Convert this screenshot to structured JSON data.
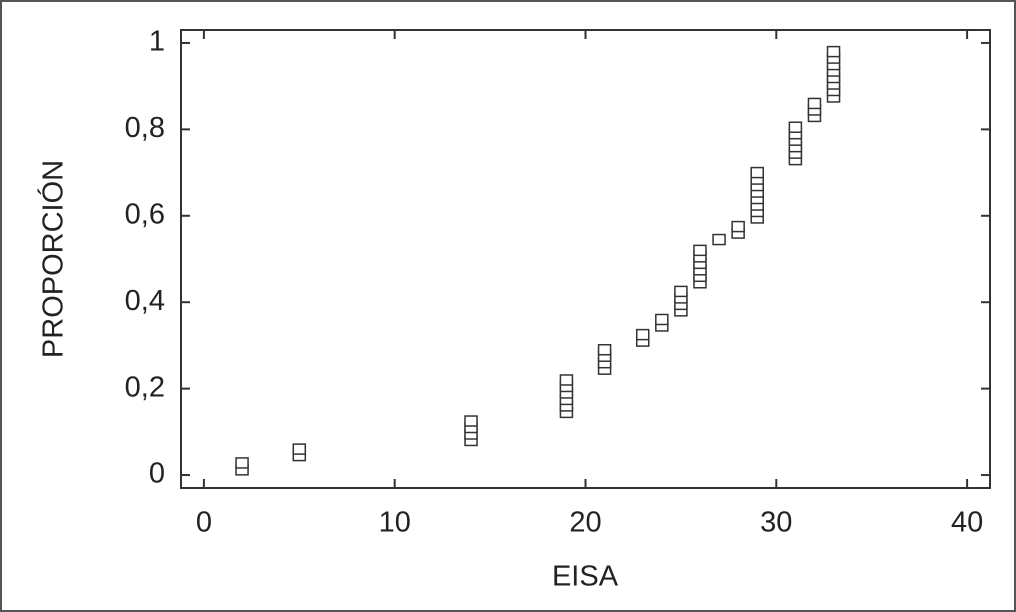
{
  "chart_data": {
    "type": "scatter",
    "x_label": "EISA",
    "y_label": "PROPORCIÓN",
    "x": [
      2,
      2,
      5,
      5,
      14,
      14,
      14,
      14,
      19,
      19,
      19,
      19,
      19,
      19,
      21,
      21,
      21,
      21,
      23,
      23,
      24,
      24,
      25,
      25,
      25,
      25,
      26,
      26,
      26,
      26,
      26,
      26,
      27,
      28,
      28,
      29,
      29,
      29,
      29,
      29,
      29,
      29,
      29,
      31,
      31,
      31,
      31,
      31,
      31,
      32,
      32,
      32,
      33,
      33,
      33,
      33,
      33,
      33,
      33,
      33
    ],
    "y": [
      0.012,
      0.028,
      0.045,
      0.06,
      0.08,
      0.095,
      0.11,
      0.125,
      0.145,
      0.16,
      0.175,
      0.19,
      0.205,
      0.22,
      0.245,
      0.26,
      0.275,
      0.29,
      0.31,
      0.325,
      0.345,
      0.36,
      0.38,
      0.395,
      0.41,
      0.425,
      0.445,
      0.46,
      0.475,
      0.49,
      0.505,
      0.52,
      0.545,
      0.56,
      0.575,
      0.595,
      0.61,
      0.625,
      0.64,
      0.655,
      0.67,
      0.685,
      0.7,
      0.73,
      0.745,
      0.76,
      0.775,
      0.79,
      0.805,
      0.83,
      0.845,
      0.86,
      0.875,
      0.89,
      0.905,
      0.92,
      0.935,
      0.95,
      0.965,
      0.98
    ],
    "color": "#333333",
    "xlim": [
      -1.2,
      41.2
    ],
    "ylim": [
      -0.03,
      1.03
    ],
    "xticks": [
      0,
      10,
      20,
      30,
      40
    ],
    "yticks": [
      0,
      {
        "value": 0.2,
        "label": "0,2"
      },
      {
        "value": 0.4,
        "label": "0,4"
      },
      {
        "value": 0.6,
        "label": "0,6"
      },
      {
        "value": 0.8,
        "label": "0,8"
      },
      1
    ]
  }
}
